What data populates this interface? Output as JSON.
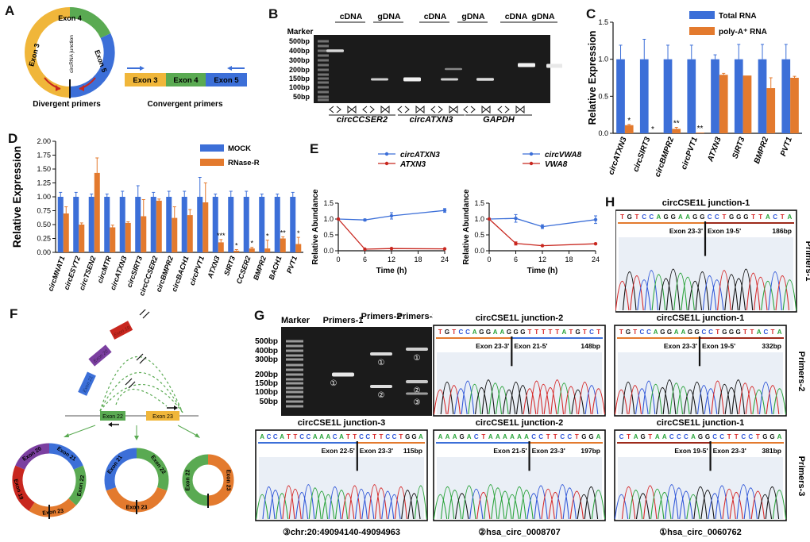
{
  "colors": {
    "blue": "#3c6fd8",
    "orange": "#e37a2e",
    "green": "#5aaa52",
    "yellow": "#f0b63a",
    "red": "#c8271f",
    "purple": "#7b3fa0",
    "gel": "#1b1b1b",
    "darkred": "#9d2a1a"
  },
  "panel_labels": [
    "A",
    "B",
    "C",
    "D",
    "E",
    "F",
    "G",
    "H"
  ],
  "A": {
    "exons": [
      "Exon 4",
      "Exon 5",
      "Exon 3"
    ],
    "junction": "circRNA junction",
    "linear_exons": [
      "Exon 3",
      "Exon 4",
      "Exon 5"
    ],
    "divergent": "Divergent primers",
    "convergent": "Convergent primers"
  },
  "B": {
    "marker": "Marker",
    "lane_headers": [
      "cDNA",
      "gDNA",
      "cDNA",
      "gDNA",
      "cDNA",
      "gDNA"
    ],
    "sizes": [
      "500bp",
      "400bp",
      "300bp",
      "200bp",
      "150bp",
      "100bp",
      "50bp"
    ],
    "genes": [
      "circCCSER2",
      "circATXN3",
      "GAPDH"
    ]
  },
  "C": {
    "chart_data": {
      "type": "bar",
      "categories": [
        "circATXN3",
        "circSIRT3",
        "circBMPR2",
        "circPVT1",
        "ATXN3",
        "SIRT3",
        "BMPR2",
        "PVT1"
      ],
      "series": [
        {
          "name": "Total RNA",
          "values": [
            1.0,
            1.0,
            1.0,
            1.0,
            1.0,
            1.0,
            1.0,
            1.0
          ],
          "err": [
            0.19,
            0.27,
            0.19,
            0.19,
            0.06,
            0.2,
            0.2,
            0.2
          ]
        },
        {
          "name": "poly-A⁺ RNA",
          "values": [
            0.11,
            0.0,
            0.06,
            0.01,
            0.79,
            0.78,
            0.61,
            0.75
          ],
          "err": [
            0.01,
            0.0,
            0.02,
            0.0,
            0.02,
            0.0,
            0.14,
            0.02
          ]
        }
      ],
      "sig": [
        "*",
        "*",
        "**",
        "**",
        "",
        "",
        "",
        ""
      ],
      "ylabel": "Relative Expression",
      "yticks": [
        "0.0",
        "0.5",
        "1.0",
        "1.5"
      ],
      "ylim": [
        0,
        1.5
      ]
    }
  },
  "D": {
    "chart_data": {
      "type": "bar",
      "categories": [
        "circMNAT1",
        "circESYT2",
        "circTSEN2",
        "circMTR",
        "circATXN3",
        "circSIRT3",
        "circCCSER2",
        "circBMPR2",
        "circBACH1",
        "circPVT1",
        "ATXN3",
        "SIRT3",
        "CCSER2",
        "BMPR2",
        "BACH1",
        "PVT1"
      ],
      "series": [
        {
          "name": "MOCK",
          "values": [
            1,
            1,
            1,
            1,
            1,
            1,
            1,
            1,
            1,
            1,
            1,
            1,
            1,
            1,
            1,
            1
          ],
          "err": [
            0.08,
            0.08,
            0.05,
            0.05,
            0.1,
            0.2,
            0.08,
            0.1,
            0.1,
            0.35,
            0.05,
            0.1,
            0.1,
            0.05,
            0.05,
            0.08
          ]
        },
        {
          "name": "RNase-R",
          "values": [
            0.7,
            0.5,
            1.43,
            0.45,
            0.53,
            0.65,
            0.93,
            0.62,
            0.67,
            0.9,
            0.18,
            0.03,
            0.07,
            0.07,
            0.25,
            0.15
          ],
          "err": [
            0.12,
            0.03,
            0.27,
            0.04,
            0.02,
            0.3,
            0.03,
            0.2,
            0.1,
            0.35,
            0.05,
            0.02,
            0.02,
            0.15,
            0.03,
            0.12
          ]
        }
      ],
      "sig": [
        "",
        "",
        "",
        "",
        "",
        "",
        "",
        "",
        "",
        "",
        "***",
        "*",
        "*",
        "*",
        "**",
        "*"
      ],
      "ylabel": "Relative Expression",
      "yticks": [
        "0.00",
        "0.25",
        "0.50",
        "0.75",
        "1.00",
        "1.25",
        "1.50",
        "1.75",
        "2.00"
      ],
      "ylim": [
        0,
        2.0
      ]
    }
  },
  "E": {
    "chart_data": [
      {
        "type": "line",
        "x": [
          0,
          6,
          12,
          24
        ],
        "xticks": [
          "0",
          "6",
          "12",
          "18",
          "24"
        ],
        "yticks": [
          "0.0",
          "0.5",
          "1.0",
          "1.5"
        ],
        "ylim": [
          0,
          1.5
        ],
        "xlim": [
          0,
          24
        ],
        "series": [
          {
            "name": "circATXN3",
            "values": [
              1.0,
              0.97,
              1.1,
              1.27
            ],
            "err": [
              0,
              0.03,
              0.1,
              0.06
            ]
          },
          {
            "name": "ATXN3",
            "values": [
              1.0,
              0.05,
              0.07,
              0.06
            ],
            "err": [
              0,
              0.0,
              0.0,
              0.0
            ]
          }
        ],
        "ylabel": "Relative Abundance",
        "xlabel": "Time (h)"
      },
      {
        "type": "line",
        "x": [
          0,
          6,
          12,
          24
        ],
        "xticks": [
          "0",
          "6",
          "12",
          "18",
          "24"
        ],
        "yticks": [
          "0.0",
          "0.5",
          "1.0",
          "1.5"
        ],
        "ylim": [
          0,
          1.5
        ],
        "xlim": [
          0,
          24
        ],
        "series": [
          {
            "name": "circVWA8",
            "values": [
              1.0,
              1.02,
              0.76,
              0.98
            ],
            "err": [
              0,
              0.12,
              0.06,
              0.12
            ]
          },
          {
            "name": "VWA8",
            "values": [
              1.0,
              0.23,
              0.16,
              0.22
            ],
            "err": [
              0,
              0.05,
              0.01,
              0.02
            ]
          }
        ],
        "ylabel": "Relative Abundance",
        "xlabel": "Time (h)"
      }
    ]
  },
  "F": {
    "exons": [
      "Exon 22",
      "Exon 23",
      "Exon 21",
      "Exon 20",
      "Exon 19"
    ]
  },
  "G": {
    "marker": "Marker",
    "lanes": [
      "Primers-1",
      "Primers-2",
      "Primers-3"
    ],
    "sizes": [
      "500bp",
      "400bp",
      "300bp",
      "200bp",
      "150bp",
      "100bp",
      "50bp"
    ],
    "band_labels": [
      "①",
      "①",
      "②",
      "①",
      "②",
      "③"
    ],
    "traces": [
      {
        "title": "circCSE1L junction-2",
        "seq": "TGTCCAGGAAGGGTTTTTATGTCT",
        "left": "Exon 23-3'",
        "right": "Exon 21-5'",
        "size": "148bp"
      },
      {
        "title": "circCSE1L junction-1",
        "seq": "TGTCCAGGAAGGCCTGGGTTACTA",
        "left": "Exon 23-3'",
        "right": "Exon 19-5'",
        "size": "332bp"
      },
      {
        "title": "circCSE1L junction-3",
        "seq": "ACCATTCCAAACATTCCTTCCTGGA",
        "left": "Exon 22-5'",
        "right": "Exon 23-3'",
        "size": "115bp"
      },
      {
        "title": "circCSE1L junction-2",
        "seq": "AAAGACTAAAAAACCTTCCTGGA",
        "left": "Exon 21-5'",
        "right": "Exon 23-3'",
        "size": "197bp"
      },
      {
        "title": "circCSE1L junction-1",
        "seq": "CTAGTAACCCAGGCCTTCCTGGA",
        "left": "Exon 19-5'",
        "right": "Exon 23-3'",
        "size": "381bp"
      }
    ],
    "row_labels": [
      "Primers-2",
      "Primers-3"
    ],
    "bottom": [
      "③chr:20:49094140-49094963",
      "②hsa_circ_0008707",
      "①hsa_circ_0060762"
    ]
  },
  "H": {
    "title": "circCSE1L junction-1",
    "seq": "TGTCCAGGAAGGCCTGGGTTACTA",
    "left": "Exon 23-3'",
    "right": "Exon 19-5'",
    "size": "186bp",
    "row_label": "Primers-1"
  }
}
